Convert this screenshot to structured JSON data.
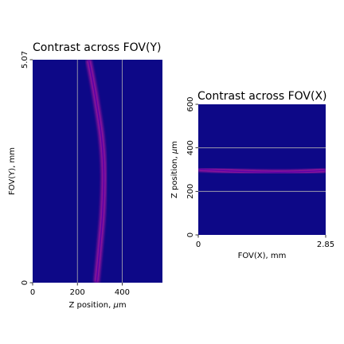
{
  "chart_data": [
    {
      "type": "heatmap",
      "title": "Contrast across FOV(Y)",
      "xlabel": "Z position, ",
      "xlabel_unit_symbol": "μ",
      "xlabel_unit_rest": "m",
      "ylabel": "FOV(Y), mm",
      "xlim": [
        0,
        580
      ],
      "ylim": [
        0,
        5.07
      ],
      "xticks": [
        {
          "value": 0,
          "label": "0"
        },
        {
          "value": 200,
          "label": "200"
        },
        {
          "value": 400,
          "label": "400"
        }
      ],
      "yticks": [
        {
          "value": 0,
          "label": "0"
        },
        {
          "value": 5.07,
          "label": "5.07"
        }
      ],
      "grid": true,
      "background_color": "#0d0887",
      "ridge": {
        "description_points": [
          {
            "y": 0.0,
            "z": 285
          },
          {
            "y": 0.8,
            "z": 300
          },
          {
            "y": 1.6,
            "z": 313
          },
          {
            "y": 2.5,
            "z": 318
          },
          {
            "y": 3.3,
            "z": 308
          },
          {
            "y": 4.1,
            "z": 285
          },
          {
            "y": 4.6,
            "z": 268
          },
          {
            "y": 5.07,
            "z": 250
          }
        ],
        "color_core": "#5c01a6",
        "color_edge": "#9c179e"
      }
    },
    {
      "type": "heatmap",
      "title": "Contrast across FOV(X)",
      "xlabel": "FOV(X), mm",
      "ylabel": "Z position, ",
      "ylabel_unit_symbol": "μ",
      "ylabel_unit_rest": "m",
      "xlim": [
        0,
        2.85
      ],
      "ylim": [
        0,
        600
      ],
      "xticks": [
        {
          "value": 0,
          "label": "0"
        },
        {
          "value": 2.85,
          "label": "2.85"
        }
      ],
      "yticks": [
        {
          "value": 0,
          "label": "0"
        },
        {
          "value": 200,
          "label": "200"
        },
        {
          "value": 400,
          "label": "400"
        },
        {
          "value": 600,
          "label": "600"
        }
      ],
      "grid": true,
      "background_color": "#0d0887",
      "ridge": {
        "description_points": [
          {
            "x": 0.0,
            "z": 302
          },
          {
            "x": 0.6,
            "z": 295
          },
          {
            "x": 1.2,
            "z": 290
          },
          {
            "x": 1.8,
            "z": 288
          },
          {
            "x": 2.4,
            "z": 291
          },
          {
            "x": 2.85,
            "z": 297
          }
        ],
        "color_core": "#5c01a6",
        "color_edge": "#9c179e"
      }
    }
  ]
}
